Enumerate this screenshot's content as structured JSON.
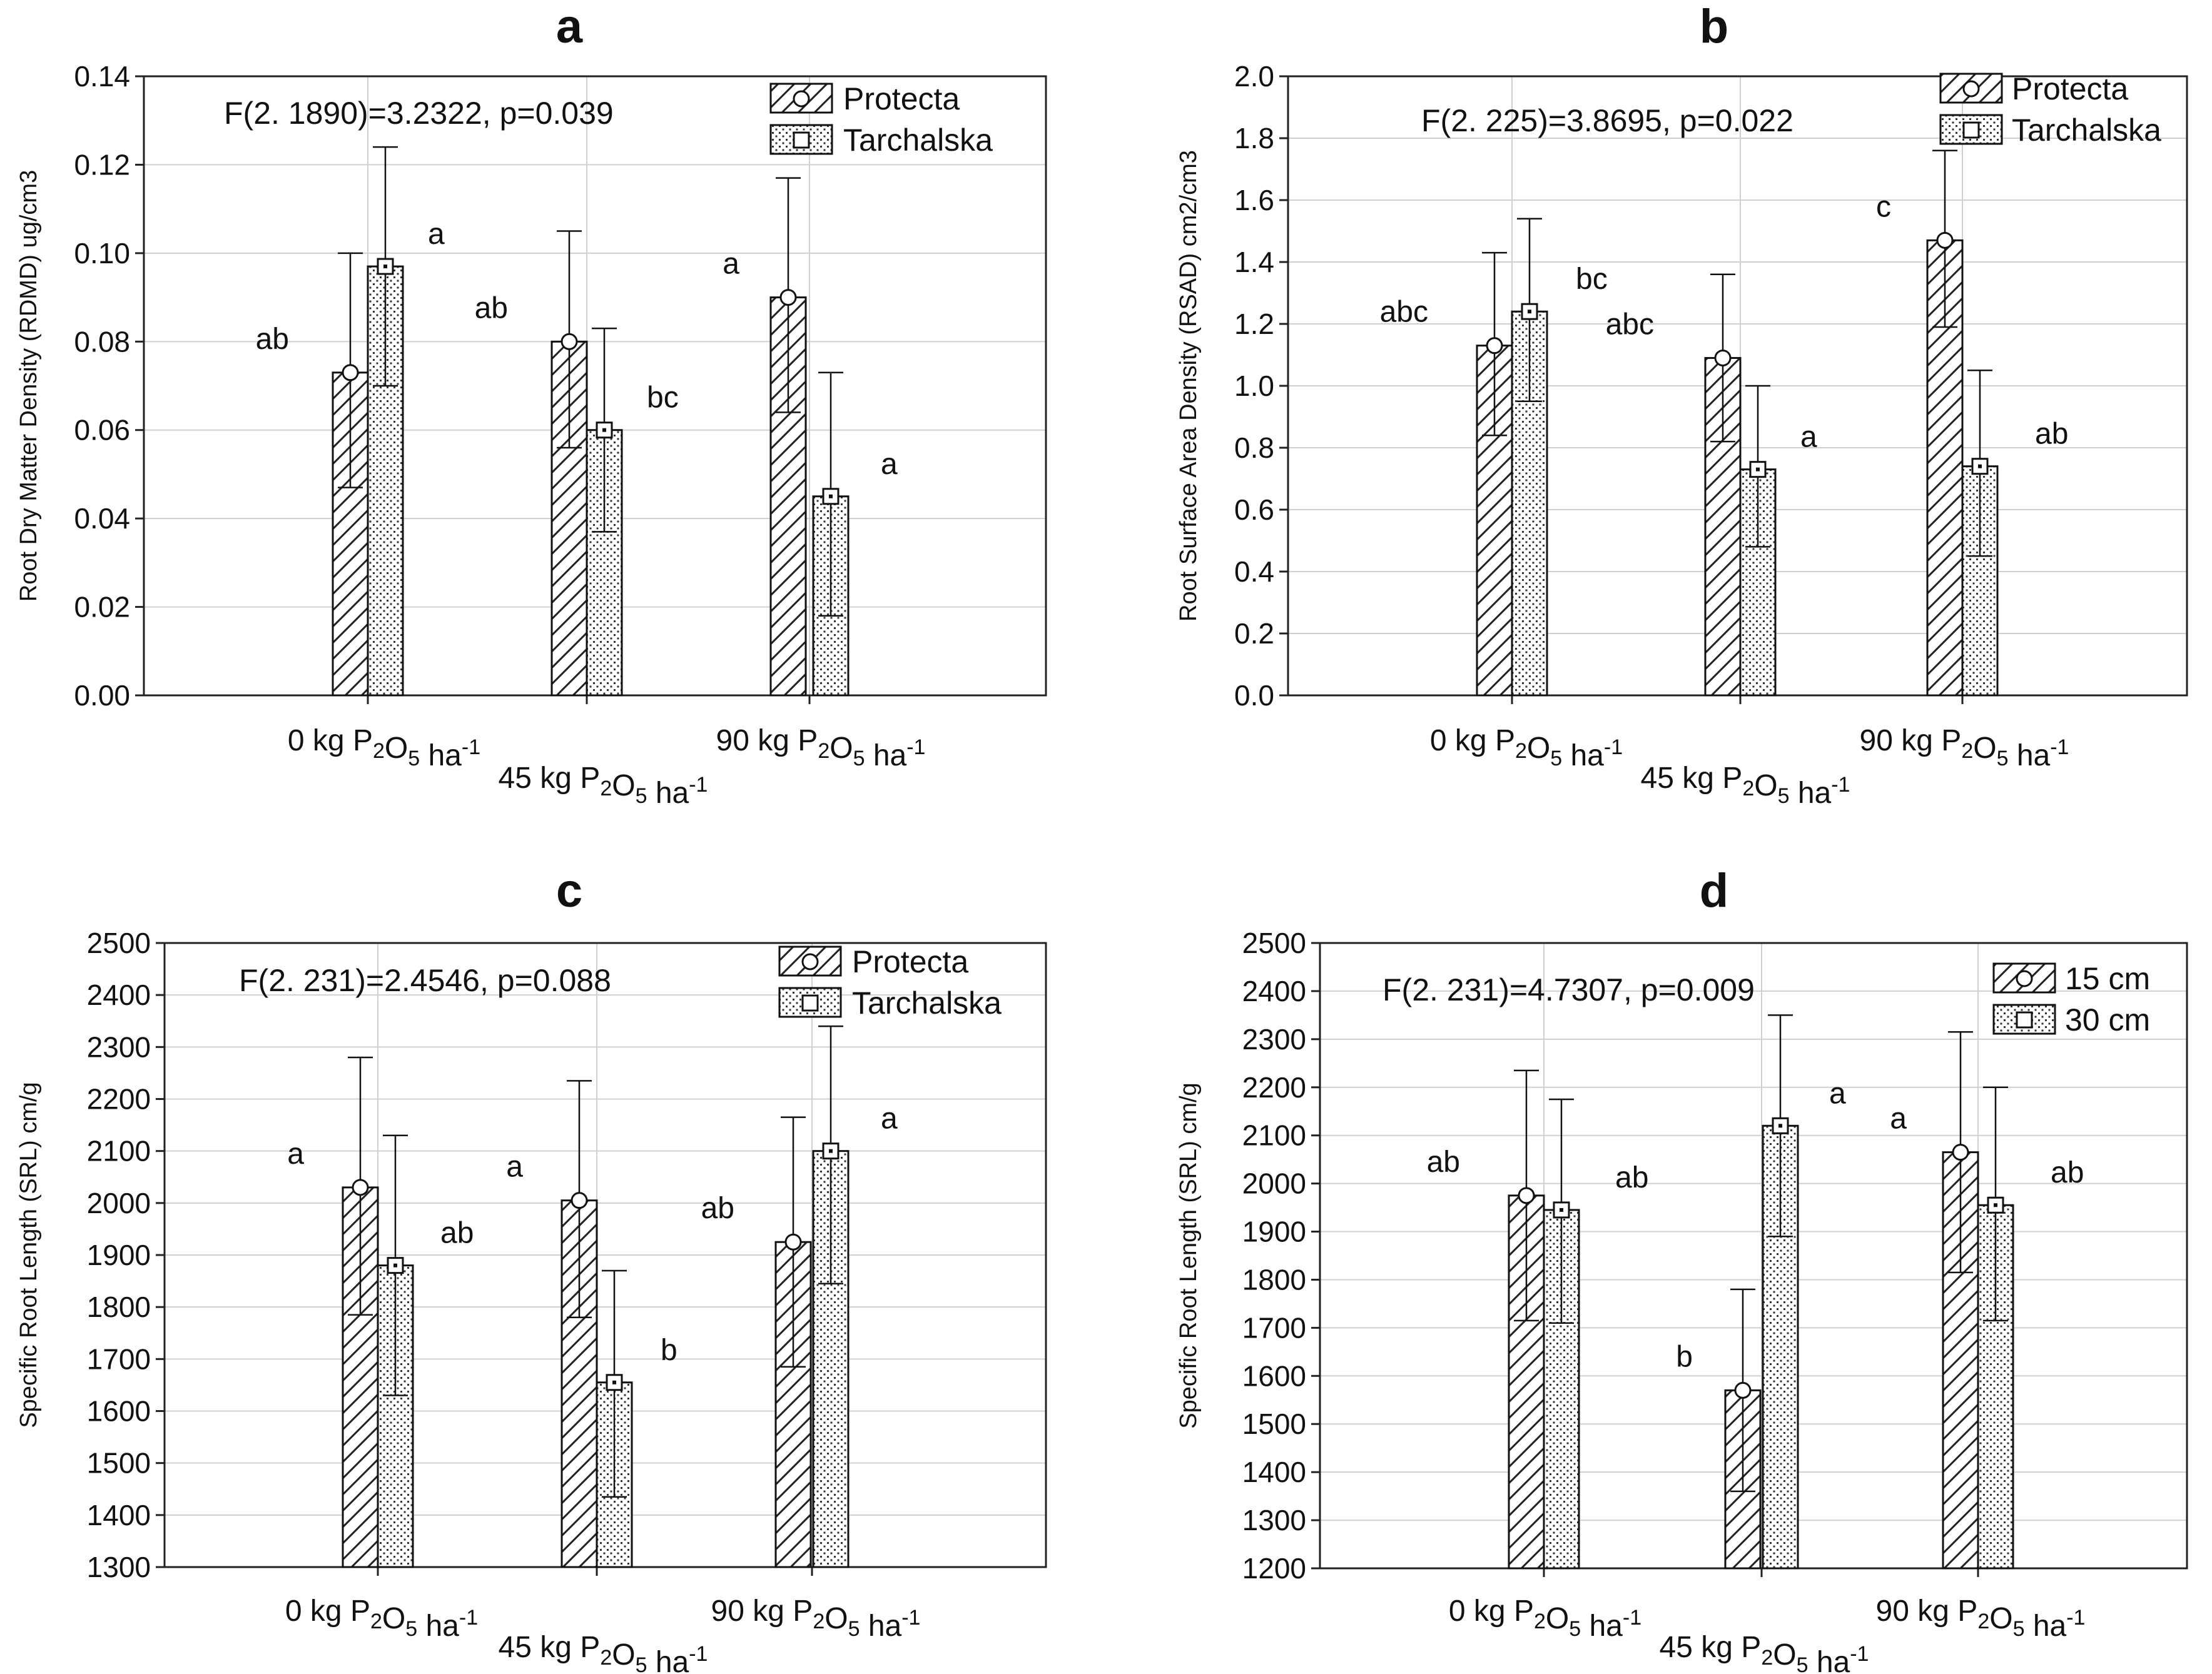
{
  "figure": {
    "x_categories": [
      "0 kg P<sub>2</sub>O<sub>5</sub> ha<sup>-1</sup>",
      "45 kg P<sub>2</sub>O<sub>5</sub> ha<sup>-1</sup>",
      "90 kg P<sub>2</sub>O<sub>5</sub> ha<sup>-1</sup>"
    ]
  },
  "chart_data": [
    {
      "panel": "a",
      "type": "bar",
      "title": "a",
      "ylabel": "Root Dry Matter Density (RDMD) ug/cm3",
      "annotation": "F(2. 1890)=3.2322, p=0.039",
      "categories": [
        "0 kg P2O5 ha-1",
        "45 kg P2O5 ha-1",
        "90 kg P2O5 ha-1"
      ],
      "ylim": [
        0,
        0.14
      ],
      "yticks": [
        "0.00",
        "0.02",
        "0.04",
        "0.06",
        "0.08",
        "0.10",
        "0.12",
        "0.14"
      ],
      "grid": true,
      "legend_position": "top-right",
      "series": [
        {
          "name": "Protecta",
          "pattern": "hatch",
          "values": [
            0.073,
            0.08,
            0.09
          ],
          "err_low": [
            0.047,
            0.056,
            0.064
          ],
          "err_high": [
            0.1,
            0.105,
            0.117
          ],
          "labels": [
            "ab",
            "ab",
            "a"
          ]
        },
        {
          "name": "Tarchalska",
          "pattern": "dots",
          "values": [
            0.097,
            0.06,
            0.045
          ],
          "err_low": [
            0.07,
            0.037,
            0.018
          ],
          "err_high": [
            0.124,
            0.083,
            0.073
          ],
          "labels": [
            "a",
            "bc",
            "a"
          ]
        }
      ]
    },
    {
      "panel": "b",
      "type": "bar",
      "title": "b",
      "ylabel": "Root Surface Area Density (RSAD) cm2/cm3",
      "annotation": "F(2. 225)=3.8695, p=0.022",
      "categories": [
        "0 kg P2O5 ha-1",
        "45 kg P2O5 ha-1",
        "90 kg P2O5 ha-1"
      ],
      "ylim": [
        0,
        2.0
      ],
      "yticks": [
        "0.0",
        "0.2",
        "0.4",
        "0.6",
        "0.8",
        "1.0",
        "1.2",
        "1.4",
        "1.6",
        "1.8",
        "2.0"
      ],
      "grid": true,
      "legend_position": "top-right",
      "series": [
        {
          "name": "Protecta",
          "pattern": "hatch",
          "values": [
            1.13,
            1.09,
            1.47
          ],
          "err_low": [
            0.84,
            0.82,
            1.19
          ],
          "err_high": [
            1.43,
            1.36,
            1.76
          ],
          "labels": [
            "abc",
            "abc",
            "c"
          ]
        },
        {
          "name": "Tarchalska",
          "pattern": "dots",
          "values": [
            1.24,
            0.73,
            0.74
          ],
          "err_low": [
            0.95,
            0.48,
            0.45
          ],
          "err_high": [
            1.54,
            1.0,
            1.05
          ],
          "labels": [
            "bc",
            "a",
            "ab"
          ]
        }
      ]
    },
    {
      "panel": "c",
      "type": "bar",
      "title": "c",
      "ylabel": "Specific Root Length (SRL) cm/g",
      "annotation": "F(2. 231)=2.4546, p=0.088",
      "categories": [
        "0 kg P2O5 ha-1",
        "45 kg P2O5 ha-1",
        "90 kg P2O5 ha-1"
      ],
      "ylim": [
        1300,
        2500
      ],
      "yticks": [
        "1300",
        "1400",
        "1500",
        "1600",
        "1700",
        "1800",
        "1900",
        "2000",
        "2100",
        "2200",
        "2300",
        "2400",
        "2500"
      ],
      "grid": true,
      "legend_position": "top-right",
      "series": [
        {
          "name": "Protecta",
          "pattern": "hatch",
          "values": [
            2030,
            2005,
            1925
          ],
          "err_low": [
            1785,
            1780,
            1685
          ],
          "err_high": [
            2280,
            2235,
            2165
          ],
          "labels": [
            "a",
            "a",
            "ab"
          ]
        },
        {
          "name": "Tarchalska",
          "pattern": "dots",
          "values": [
            1880,
            1655,
            2100
          ],
          "err_low": [
            1630,
            1435,
            1845
          ],
          "err_high": [
            2130,
            1870,
            2340
          ],
          "labels": [
            "ab",
            "b",
            "a"
          ]
        }
      ]
    },
    {
      "panel": "d",
      "type": "bar",
      "title": "d",
      "ylabel": "Specific Root Length (SRL) cm/g",
      "annotation": "F(2. 231)=4.7307, p=0.009",
      "categories": [
        "0 kg P2O5 ha-1",
        "45 kg P2O5 ha-1",
        "90 kg P2O5 ha-1"
      ],
      "ylim": [
        1200,
        2500
      ],
      "yticks": [
        "1200",
        "1300",
        "1400",
        "1500",
        "1600",
        "1700",
        "1800",
        "1900",
        "2000",
        "2100",
        "2200",
        "2300",
        "2400",
        "2500"
      ],
      "grid": true,
      "legend_position": "top-right",
      "series": [
        {
          "name": "15 cm",
          "pattern": "hatch",
          "values": [
            1975,
            1570,
            2065
          ],
          "err_low": [
            1715,
            1360,
            1815
          ],
          "err_high": [
            2235,
            1780,
            2315
          ],
          "labels": [
            "ab",
            "b",
            "a"
          ]
        },
        {
          "name": "30 cm",
          "pattern": "dots",
          "values": [
            1945,
            2120,
            1955
          ],
          "err_low": [
            1710,
            1890,
            1715
          ],
          "err_high": [
            2175,
            2350,
            2200
          ],
          "labels": [
            "ab",
            "a",
            "ab"
          ]
        }
      ]
    }
  ]
}
